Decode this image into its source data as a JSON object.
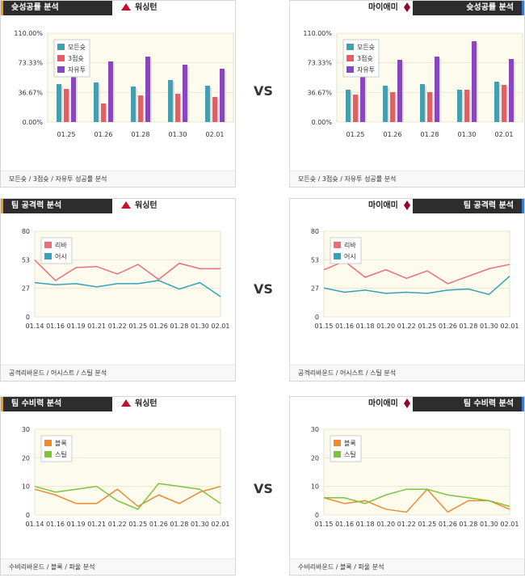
{
  "vs_label": "VS",
  "sections": [
    {
      "title": "슛성공률 분석",
      "left_team": "워싱턴",
      "right_team": "마이애미",
      "footer": "모든슛 / 3점슛 / 자유투 성공률 분석",
      "left_chart": {
        "type": "bar",
        "categories": [
          "01.25",
          "01.26",
          "01.28",
          "01.30",
          "02.01"
        ],
        "yticks": [
          "110.00%",
          "73.33%",
          "36.67%",
          "0.00%"
        ],
        "ylim": [
          0,
          110
        ],
        "series": [
          {
            "name": "모든슛",
            "color": "#41a0b4",
            "values": [
              47,
              49,
              44,
              52,
              45
            ]
          },
          {
            "name": "3점슛",
            "color": "#e75d64",
            "values": [
              41,
              23,
              33,
              35,
              31
            ]
          },
          {
            "name": "자유투",
            "color": "#8b45c2",
            "values": [
              63,
              75,
              81,
              71,
              66
            ]
          }
        ]
      },
      "right_chart": {
        "type": "bar",
        "categories": [
          "01.25",
          "01.26",
          "01.28",
          "01.30",
          "02.01"
        ],
        "yticks": [
          "110.00%",
          "73.33%",
          "36.67%",
          "0.00%"
        ],
        "ylim": [
          0,
          110
        ],
        "series": [
          {
            "name": "모든슛",
            "color": "#41a0b4",
            "values": [
              40,
              45,
              47,
              40,
              50
            ]
          },
          {
            "name": "3점슛",
            "color": "#e75d64",
            "values": [
              34,
              37,
              37,
              40,
              46
            ]
          },
          {
            "name": "자유투",
            "color": "#8b45c2",
            "values": [
              64,
              77,
              81,
              100,
              78
            ]
          }
        ]
      }
    },
    {
      "title": "팀 공격력 분석",
      "left_team": "워싱턴",
      "right_team": "마이애미",
      "footer": "공격리바운드 / 어시스트 / 스틸 분석",
      "left_chart": {
        "type": "line",
        "categories": [
          "01.14",
          "01.16",
          "01.19",
          "01.21",
          "01.22",
          "01.25",
          "01.26",
          "01.28",
          "01.30",
          "02.01"
        ],
        "yticks": [
          "80",
          "53",
          "27",
          "0"
        ],
        "ylim": [
          0,
          80
        ],
        "series": [
          {
            "name": "리바",
            "color": "#ef6d78",
            "values": [
              53,
              34,
              46,
              47,
              40,
              49,
              35,
              50,
              45,
              45
            ]
          },
          {
            "name": "어시",
            "color": "#35a2b7",
            "values": [
              32,
              30,
              31,
              28,
              31,
              31,
              34,
              26,
              32,
              19
            ]
          }
        ]
      },
      "right_chart": {
        "type": "line",
        "categories": [
          "01.15",
          "01.16",
          "01.18",
          "01.20",
          "01.22",
          "01.25",
          "01.26",
          "01.28",
          "01.30",
          "02.01"
        ],
        "yticks": [
          "80",
          "53",
          "27",
          "0"
        ],
        "ylim": [
          0,
          80
        ],
        "series": [
          {
            "name": "리바",
            "color": "#ef6d78",
            "values": [
              44,
              52,
              37,
              44,
              36,
              43,
              31,
              38,
              45,
              49
            ]
          },
          {
            "name": "어시",
            "color": "#35a2b7",
            "values": [
              27,
              23,
              25,
              22,
              23,
              22,
              25,
              26,
              21,
              38
            ]
          }
        ]
      }
    },
    {
      "title": "팀 수비력 분석",
      "left_team": "워싱턴",
      "right_team": "마이애미",
      "footer": "수비리바운드 / 블록 / 파울 분석",
      "left_chart": {
        "type": "line",
        "categories": [
          "01.14",
          "01.16",
          "01.19",
          "01.21",
          "01.22",
          "01.25",
          "01.26",
          "01.28",
          "01.30",
          "02.01"
        ],
        "yticks": [
          "30",
          "20",
          "10",
          "0"
        ],
        "ylim": [
          0,
          30
        ],
        "series": [
          {
            "name": "블록",
            "color": "#f08a2f",
            "values": [
              9,
              7,
              4,
              4,
              9,
              3,
              7,
              4,
              8,
              10
            ]
          },
          {
            "name": "스틸",
            "color": "#7fc33c",
            "values": [
              10,
              8,
              9,
              10,
              5,
              2,
              11,
              10,
              9,
              4
            ]
          }
        ]
      },
      "right_chart": {
        "type": "line",
        "categories": [
          "01.15",
          "01.16",
          "01.18",
          "01.20",
          "01.22",
          "01.25",
          "01.26",
          "01.28",
          "01.30",
          "02.01"
        ],
        "yticks": [
          "30",
          "20",
          "10",
          "0"
        ],
        "ylim": [
          0,
          30
        ],
        "series": [
          {
            "name": "블록",
            "color": "#f08a2f",
            "values": [
              6,
              4,
              5,
              2,
              1,
              9,
              1,
              5,
              5,
              2
            ]
          },
          {
            "name": "스틸",
            "color": "#7fc33c",
            "values": [
              6,
              6,
              4,
              7,
              9,
              9,
              7,
              6,
              5,
              3
            ]
          }
        ]
      }
    }
  ]
}
